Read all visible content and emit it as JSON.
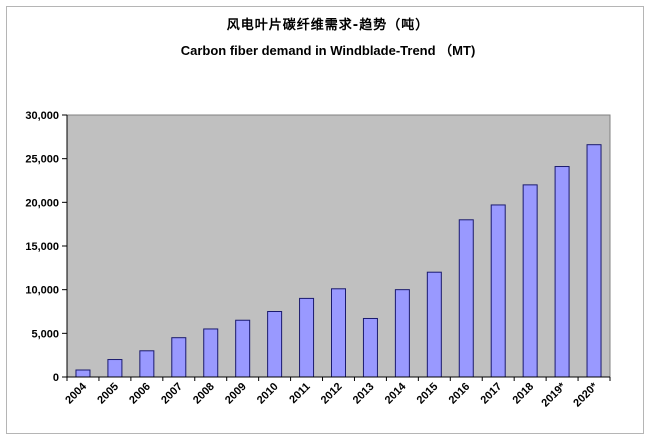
{
  "chart_data": {
    "type": "bar",
    "title": "风电叶片碳纤维需求-趋势（吨）",
    "subtitle": "Carbon fiber demand in Windblade-Trend （MT)",
    "xlabel": "",
    "ylabel": "",
    "categories": [
      "2004",
      "2005",
      "2006",
      "2007",
      "2008",
      "2009",
      "2010",
      "2011",
      "2012",
      "2013",
      "2014",
      "2015",
      "2016",
      "2017",
      "2018",
      "2019*",
      "2020*"
    ],
    "values": [
      800,
      2000,
      3000,
      4500,
      5500,
      6500,
      7500,
      9000,
      10100,
      6700,
      10000,
      12000,
      18000,
      19700,
      22000,
      24100,
      26600
    ],
    "ylim": [
      0,
      30000
    ],
    "yticks": [
      0,
      5000,
      10000,
      15000,
      20000,
      25000,
      30000
    ],
    "ytick_labels": [
      "0",
      "5,000",
      "10,000",
      "15,000",
      "20,000",
      "25,000",
      "30,000"
    ],
    "grid": false,
    "colors": {
      "bar_fill": "#9999ff",
      "bar_stroke": "#1a1a6e",
      "plot_background": "#c0c0c0",
      "frame": "#b5b5b5"
    }
  }
}
